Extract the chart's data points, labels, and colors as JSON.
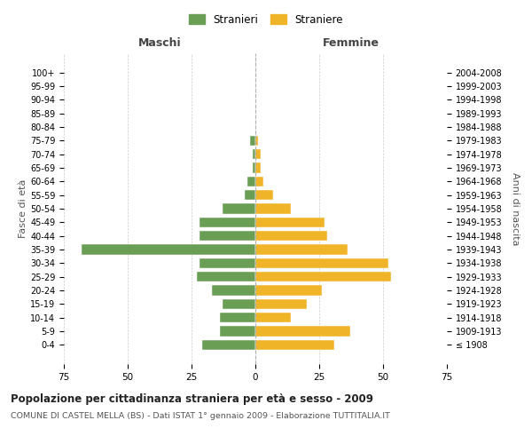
{
  "age_groups": [
    "100+",
    "95-99",
    "90-94",
    "85-89",
    "80-84",
    "75-79",
    "70-74",
    "65-69",
    "60-64",
    "55-59",
    "50-54",
    "45-49",
    "40-44",
    "35-39",
    "30-34",
    "25-29",
    "20-24",
    "15-19",
    "10-14",
    "5-9",
    "0-4"
  ],
  "birth_years": [
    "≤ 1908",
    "1909-1913",
    "1914-1918",
    "1919-1923",
    "1924-1928",
    "1929-1933",
    "1934-1938",
    "1939-1943",
    "1944-1948",
    "1949-1953",
    "1954-1958",
    "1959-1963",
    "1964-1968",
    "1969-1973",
    "1974-1978",
    "1979-1983",
    "1984-1988",
    "1989-1993",
    "1994-1998",
    "1999-2003",
    "2004-2008"
  ],
  "maschi": [
    0,
    0,
    0,
    0,
    0,
    2,
    1,
    1,
    3,
    4,
    13,
    22,
    22,
    68,
    22,
    23,
    17,
    13,
    14,
    14,
    21
  ],
  "femmine": [
    0,
    0,
    0,
    0,
    0,
    1,
    2,
    2,
    3,
    7,
    14,
    27,
    28,
    36,
    52,
    53,
    26,
    20,
    14,
    37,
    31
  ],
  "color_maschi": "#6b9e55",
  "color_femmine": "#f0b429",
  "background_color": "#ffffff",
  "grid_color": "#cccccc",
  "title": "Popolazione per cittadinanza straniera per età e sesso - 2009",
  "subtitle": "COMUNE DI CASTEL MELLA (BS) - Dati ISTAT 1° gennaio 2009 - Elaborazione TUTTITALIA.IT",
  "xlabel_left": "Maschi",
  "xlabel_right": "Femmine",
  "ylabel_left": "Fasce di età",
  "ylabel_right": "Anni di nascita",
  "xlim": 75,
  "legend_stranieri": "Stranieri",
  "legend_straniere": "Straniere"
}
